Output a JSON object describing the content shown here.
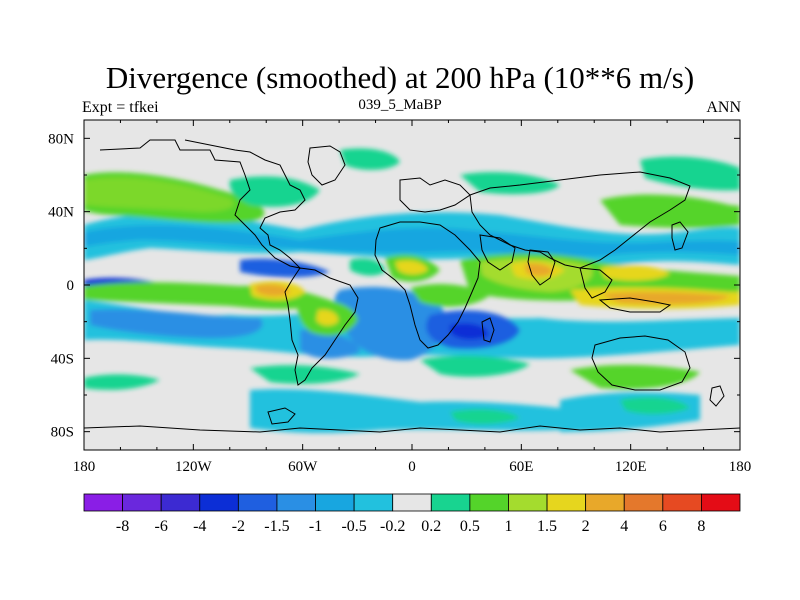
{
  "figure": {
    "title": "Divergence (smoothed) at 200 hPa (10**6 m/s)",
    "left_label": "Expt = tfkei",
    "center_label": "039_5_MaBP",
    "right_label": "ANN"
  },
  "chart_data": {
    "type": "heatmap",
    "title": "Divergence (smoothed) at 200 hPa (10**6 m/s)",
    "projection": "cylindrical equidistant, global",
    "lon_range": [
      -180,
      180
    ],
    "lat_range": [
      -90,
      90
    ],
    "x_ticks": [
      "180",
      "120W",
      "60W",
      "0",
      "60E",
      "120E",
      "180"
    ],
    "y_ticks": [
      "80N",
      "40N",
      "0",
      "40S",
      "80S"
    ],
    "colorbar": {
      "labels": [
        "-8",
        "-6",
        "-4",
        "-2",
        "-1.5",
        "-1",
        "-0.5",
        "-0.2",
        "0.2",
        "0.5",
        "1",
        "1.5",
        "2",
        "4",
        "6",
        "8"
      ],
      "colors": [
        "#8a1ee6",
        "#6a28dd",
        "#3c2ad2",
        "#0c2ed6",
        "#1f5fe0",
        "#2a8fe4",
        "#18a6e0",
        "#22c1de",
        "#e6e6e6",
        "#18d490",
        "#54d42a",
        "#a4dc2e",
        "#e6d61e",
        "#e8a82a",
        "#e4782c",
        "#e64a22",
        "#e40c16"
      ]
    },
    "features": [
      {
        "name": "equatorial-convergence-pacific",
        "lon": -165,
        "lat": 0,
        "rx": 20,
        "ry": 3,
        "level": -2
      },
      {
        "name": "south-america-divergence",
        "lon": -85,
        "lat": -4,
        "rx": 22,
        "ry": 7,
        "level": 2
      },
      {
        "name": "atlantic-convergence",
        "lon": -40,
        "lat": -8,
        "rx": 14,
        "ry": 12,
        "level": -1
      },
      {
        "name": "africa-divergence",
        "lon": 0,
        "lat": 8,
        "rx": 8,
        "ry": 6,
        "level": 1.5
      },
      {
        "name": "indian-ocean-convergence",
        "lon": 30,
        "lat": -25,
        "rx": 16,
        "ry": 10,
        "level": -1.5
      },
      {
        "name": "asia-divergence",
        "lon": 70,
        "lat": 8,
        "rx": 14,
        "ry": 8,
        "level": 4
      },
      {
        "name": "west-pacific-divergence",
        "lon": 130,
        "lat": -5,
        "rx": 45,
        "ry": 8,
        "level": 2
      },
      {
        "name": "northern-midlat-divergence",
        "lon": -160,
        "lat": 45,
        "rx": 25,
        "ry": 8,
        "level": 1
      },
      {
        "name": "southern-midlat-divergence",
        "lon": 100,
        "lat": -50,
        "rx": 25,
        "ry": 6,
        "level": 0.5
      }
    ],
    "grid": false,
    "legend": "bottom"
  }
}
